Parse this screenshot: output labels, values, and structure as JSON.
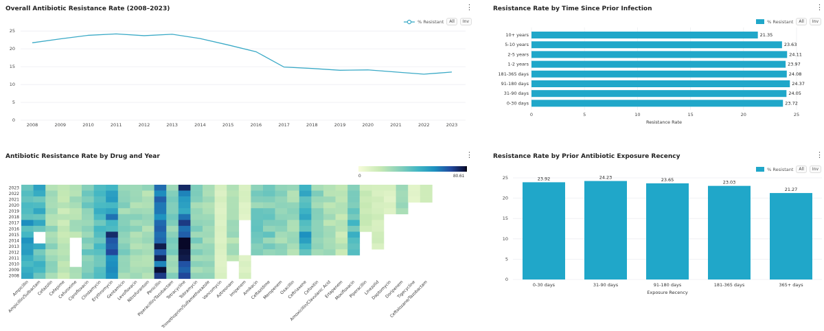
{
  "panels": {
    "line": {
      "title": "Overall Antibiotic Resistance Rate (2008–2023)",
      "legend_label": "% Resistant",
      "btn_all": "All",
      "btn_inv": "Inv"
    },
    "hbar": {
      "title": "Resistance Rate by Time Since Prior Infection",
      "legend_label": "% Resistant",
      "btn_all": "All",
      "btn_inv": "Inv"
    },
    "heat": {
      "title": "Antibiotic Resistance Rate by Drug and Year",
      "scale_min": "0",
      "scale_max": "80.61"
    },
    "vbar": {
      "title": "Resistance Rate by Prior Antibiotic Exposure Recency",
      "legend_label": "% Resistant",
      "btn_all": "All",
      "btn_inv": "Inv"
    }
  },
  "colors": {
    "accent": "#20a7c9",
    "line": "#39a9c6"
  },
  "chart_data": [
    {
      "type": "line",
      "title": "Overall Antibiotic Resistance Rate (2008–2023)",
      "x": [
        "2008",
        "2009",
        "2010",
        "2011",
        "2012",
        "2013",
        "2014",
        "2015",
        "2016",
        "2017",
        "2018",
        "2019",
        "2020",
        "2021",
        "2022",
        "2023"
      ],
      "series": [
        {
          "name": "% Resistant",
          "values": [
            21.7,
            22.8,
            23.8,
            24.2,
            23.7,
            24.1,
            22.9,
            21.1,
            19.2,
            14.9,
            14.5,
            14.0,
            14.1,
            13.5,
            12.9,
            13.5
          ]
        }
      ],
      "yticks": [
        0,
        5,
        10,
        15,
        20,
        25
      ],
      "ylim": [
        0,
        26
      ]
    },
    {
      "type": "bar",
      "orientation": "horizontal",
      "title": "Resistance Rate by Time Since Prior Infection",
      "categories": [
        "10+ years",
        "5-10 years",
        "2-5 years",
        "1-2 years",
        "181-365 days",
        "91-180 days",
        "31-90 days",
        "0-30 days"
      ],
      "values": [
        21.35,
        23.63,
        24.11,
        23.97,
        24.08,
        24.37,
        24.05,
        23.72
      ],
      "xlabel": "Resistance Rate",
      "xticks": [
        0,
        5,
        10,
        15,
        20,
        25
      ],
      "xlim": [
        0,
        25
      ]
    },
    {
      "type": "heatmap",
      "title": "Antibiotic Resistance Rate by Drug and Year",
      "years": [
        "2023",
        "2022",
        "2021",
        "2020",
        "2019",
        "2018",
        "2017",
        "2016",
        "2015",
        "2014",
        "2013",
        "2012",
        "2011",
        "2010",
        "2009",
        "2008"
      ],
      "drugs": [
        "Ampicillin",
        "Ampicillin/Sulbactam",
        "Cefazolin",
        "Cefepime",
        "Cefuroxime",
        "Ciprofloxacin",
        "Clindamycin",
        "Erythromycin",
        "Gentamicin",
        "Levofloxacin",
        "Nitrofurantoin",
        "Penicillin",
        "Piperacillin/Tazobactam",
        "Tetracycline",
        "Tobramycin",
        "Trimethoprim/Sulfamethoxazole",
        "Vancomycin",
        "Aztreonam",
        "Imipenem",
        "Amikacin",
        "Ceftazidime",
        "Meropenem",
        "Oxacillin",
        "Ceftriaxone",
        "Cefoxitin",
        "Amoxicillin/Clavulanic Acid",
        "Ertapenem",
        "Moxifloxacin",
        "Piperacillin",
        "Linezolid",
        "Daptomycin",
        "Doripenem",
        "Tigecycline",
        "Ceftolozane/Tazobactam"
      ],
      "scale": [
        0,
        80.61
      ]
    },
    {
      "type": "bar",
      "title": "Resistance Rate by Prior Antibiotic Exposure Recency",
      "categories": [
        "0-30 days",
        "31-90 days",
        "91-180 days",
        "181-365 days",
        "365+ days"
      ],
      "values": [
        23.92,
        24.23,
        23.65,
        23.03,
        21.27
      ],
      "xlabel": "Exposure Recency",
      "yticks": [
        0,
        5,
        10,
        15,
        20,
        25
      ],
      "ylim": [
        0,
        25
      ]
    }
  ]
}
